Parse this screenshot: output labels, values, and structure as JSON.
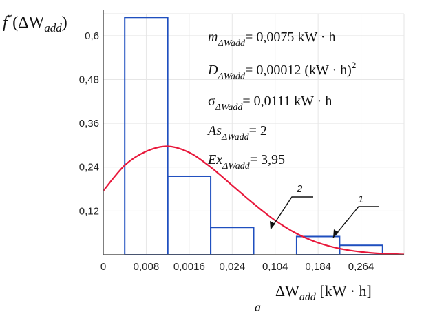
{
  "chart_data": {
    "type": "bar",
    "ylabel": "f*(ΔWadd)",
    "xlabel": "ΔWadd [kW·h]",
    "panel_label": "a",
    "x_tick_labels": [
      "0",
      "0,008",
      "0,0016",
      "0,024",
      "0,104",
      "0,184",
      "0,264"
    ],
    "y_tick_labels": [
      "0,12",
      "0,24",
      "0,36",
      "0,48",
      "0,6"
    ],
    "ylim": [
      0,
      0.66
    ],
    "grid": true,
    "bars": [
      {
        "bin": 1,
        "value": 0.65
      },
      {
        "bin": 2,
        "value": 0.215
      },
      {
        "bin": 3,
        "value": 0.075
      },
      {
        "bin": 5,
        "value": 0.05
      },
      {
        "bin": 6,
        "value": 0.026
      }
    ],
    "series": [
      {
        "name": "1",
        "kind": "histogram",
        "color": "#1f4fbf"
      },
      {
        "name": "2",
        "kind": "fitted curve",
        "color": "#e8173a"
      }
    ],
    "curve_points": [
      {
        "bin": 0.0,
        "y": 0.175
      },
      {
        "bin": 0.5,
        "y": 0.245
      },
      {
        "bin": 1.0,
        "y": 0.283
      },
      {
        "bin": 1.5,
        "y": 0.297
      },
      {
        "bin": 2.0,
        "y": 0.28
      },
      {
        "bin": 2.5,
        "y": 0.24
      },
      {
        "bin": 3.0,
        "y": 0.19
      },
      {
        "bin": 3.5,
        "y": 0.14
      },
      {
        "bin": 4.0,
        "y": 0.094
      },
      {
        "bin": 4.5,
        "y": 0.058
      },
      {
        "bin": 5.0,
        "y": 0.033
      },
      {
        "bin": 5.5,
        "y": 0.017
      },
      {
        "bin": 6.0,
        "y": 0.008
      },
      {
        "bin": 6.5,
        "y": 0.003
      },
      {
        "bin": 7.0,
        "y": 0.001
      }
    ],
    "stats": {
      "m": "m",
      "m_sub": "ΔWadd",
      "m_value": "= 0,0075 kW · h",
      "d": "D",
      "d_sub": "ΔWadd",
      "d_value": "= 0,00012 (kW · h)",
      "d_exp": "2",
      "sigma": "σ",
      "sigma_sub": "ΔWadd",
      "sigma_value": "= 0,0111 kW · h",
      "as": "As",
      "as_sub": "ΔWadd",
      "as_value": "= 2",
      "ex": "Ex",
      "ex_sub": "ΔWadd",
      "ex_value": "= 3,95"
    },
    "labels": {
      "histogram": "1",
      "curve": "2"
    },
    "colors": {
      "grid": "#e6e6e6",
      "axis": "#555555",
      "bar": "#1f4fbf",
      "curve": "#e8173a"
    }
  }
}
